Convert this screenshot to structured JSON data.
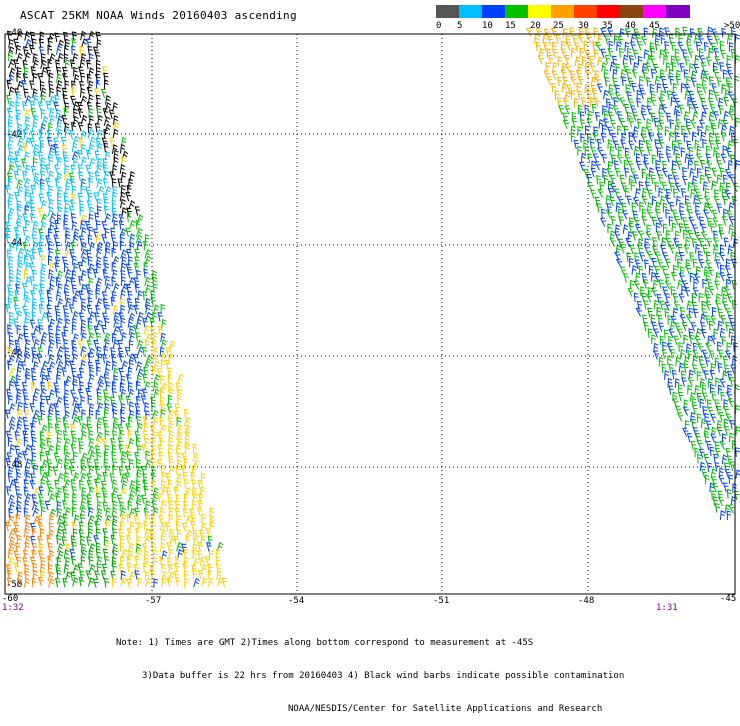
{
  "title": "ASCAT 25KM NOAA Winds 20160403 ascending",
  "legend": {
    "ticks": [
      "0",
      "5",
      "10",
      "15",
      "20",
      "25",
      "30",
      "35",
      "40",
      "45",
      ">50 knots"
    ],
    "colors": [
      "#555555",
      "#00c0ff",
      "#0040ff",
      "#00c000",
      "#ffff00",
      "#ffa000",
      "#ff4000",
      "#ff0000",
      "#8b4513",
      "#ff00ff",
      "#8000c0"
    ]
  },
  "map": {
    "lon_labels": [
      "-60",
      "-57",
      "-54",
      "-51",
      "-48",
      "-45"
    ],
    "lat_labels": [
      "-40",
      "-42",
      "-44",
      "-46",
      "-48",
      "-50"
    ],
    "time_left": "1:32",
    "time_right": "1:31"
  },
  "notes": {
    "line1": "Note: 1) Times are GMT 2)Times along bottom correspond to measurement at -45S",
    "line2": "3)Data buffer is 22 hrs from 20160403 4) Black wind barbs indicate possible contamination",
    "line3": "NOAA/NESDIS/Center for Satellite Applications and Research"
  }
}
